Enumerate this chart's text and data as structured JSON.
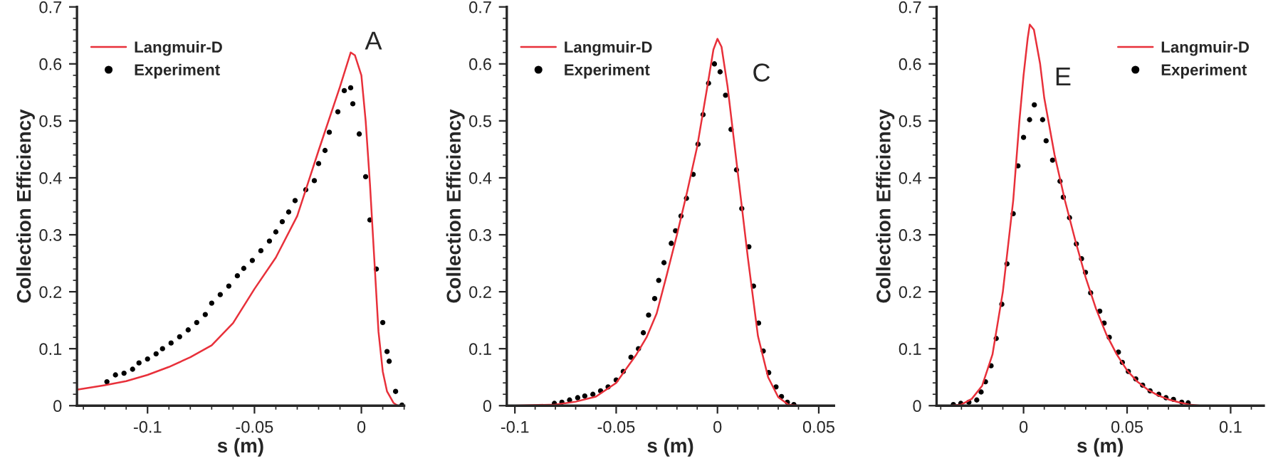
{
  "chart_data": [
    {
      "type": "line",
      "xlabel": "s (m)",
      "ylabel": "Collection Efficiency",
      "annotations": [
        "A"
      ],
      "xlim": [
        -0.133,
        0.02
      ],
      "ylim": [
        0,
        0.7
      ],
      "xticks": [
        -0.1,
        -0.05,
        0
      ],
      "yticks": [
        0,
        0.1,
        0.2,
        0.3,
        0.4,
        0.5,
        0.6,
        0.7
      ],
      "legend": "top left",
      "grid": false,
      "series": [
        {
          "name": "Langmuir-D",
          "color": "#e8303a",
          "marker": "none",
          "line_style": "solid",
          "x": [
            -0.133,
            -0.12,
            -0.11,
            -0.1,
            -0.09,
            -0.08,
            -0.07,
            -0.06,
            -0.05,
            -0.04,
            -0.03,
            -0.02,
            -0.01,
            -0.005,
            -0.003,
            0,
            0.002,
            0.004,
            0.006,
            0.008,
            0.01,
            0.012,
            0.015,
            0.017
          ],
          "values": [
            0.028,
            0.036,
            0.043,
            0.054,
            0.068,
            0.085,
            0.106,
            0.145,
            0.205,
            0.26,
            0.333,
            0.448,
            0.56,
            0.62,
            0.615,
            0.58,
            0.5,
            0.39,
            0.26,
            0.13,
            0.06,
            0.025,
            0.005,
            0
          ]
        },
        {
          "name": "Experiment",
          "type": "scatter",
          "color": "#000000",
          "marker": "circle",
          "x": [
            -0.119,
            -0.115,
            -0.111,
            -0.107,
            -0.104,
            -0.1,
            -0.096,
            -0.093,
            -0.089,
            -0.085,
            -0.081,
            -0.077,
            -0.073,
            -0.07,
            -0.066,
            -0.062,
            -0.058,
            -0.055,
            -0.051,
            -0.047,
            -0.043,
            -0.04,
            -0.037,
            -0.034,
            -0.031,
            -0.026,
            -0.022,
            -0.02,
            -0.017,
            -0.015,
            -0.011,
            -0.008,
            -0.005,
            -0.004,
            -0.001,
            0.002,
            0.004,
            0.007,
            0.01,
            0.012,
            0.013,
            0.016,
            0.019
          ],
          "values": [
            0.042,
            0.054,
            0.057,
            0.064,
            0.075,
            0.082,
            0.091,
            0.1,
            0.11,
            0.121,
            0.133,
            0.146,
            0.16,
            0.18,
            0.195,
            0.21,
            0.228,
            0.241,
            0.255,
            0.272,
            0.289,
            0.305,
            0.323,
            0.34,
            0.36,
            0.379,
            0.395,
            0.425,
            0.448,
            0.48,
            0.516,
            0.553,
            0.558,
            0.53,
            0.477,
            0.402,
            0.326,
            0.24,
            0.146,
            0.095,
            0.078,
            0.025,
            0.001
          ]
        }
      ]
    },
    {
      "type": "line",
      "xlabel": "s (m)",
      "ylabel": "Collection Efficiency",
      "annotations": [
        "C"
      ],
      "xlim": [
        -0.104,
        0.0575
      ],
      "ylim": [
        0,
        0.7
      ],
      "xticks": [
        -0.1,
        -0.05,
        0,
        0.05
      ],
      "yticks": [
        0,
        0.1,
        0.2,
        0.3,
        0.4,
        0.5,
        0.6,
        0.7
      ],
      "legend": "top left",
      "grid": false,
      "series": [
        {
          "name": "Langmuir-D",
          "color": "#e8303a",
          "marker": "none",
          "line_style": "solid",
          "x": [
            -0.1,
            -0.08,
            -0.07,
            -0.06,
            -0.05,
            -0.04,
            -0.035,
            -0.03,
            -0.025,
            -0.02,
            -0.015,
            -0.01,
            -0.005,
            -0.002,
            0,
            0.002,
            0.005,
            0.01,
            0.015,
            0.02,
            0.025,
            0.03,
            0.035,
            0.04
          ],
          "values": [
            0,
            0.002,
            0.007,
            0.016,
            0.04,
            0.09,
            0.12,
            0.162,
            0.23,
            0.3,
            0.375,
            0.455,
            0.56,
            0.625,
            0.644,
            0.63,
            0.56,
            0.41,
            0.26,
            0.122,
            0.05,
            0.015,
            0.002,
            0
          ]
        },
        {
          "name": "Experiment",
          "type": "scatter",
          "color": "#000000",
          "marker": "circle",
          "x": [
            -0.0805,
            -0.0768,
            -0.073,
            -0.069,
            -0.0655,
            -0.0615,
            -0.0577,
            -0.054,
            -0.05,
            -0.0465,
            -0.0427,
            -0.039,
            -0.0366,
            -0.034,
            -0.031,
            -0.029,
            -0.0264,
            -0.0228,
            -0.0207,
            -0.018,
            -0.0153,
            -0.012,
            -0.0096,
            -0.0071,
            -0.0044,
            -0.0015,
            0.0013,
            0.004,
            0.0067,
            0.0094,
            0.012,
            0.0155,
            0.0178,
            0.0203,
            0.0226,
            0.0253,
            0.0289,
            0.0316,
            0.0345,
            0.0377
          ],
          "values": [
            0.004,
            0.006,
            0.01,
            0.014,
            0.017,
            0.02,
            0.026,
            0.033,
            0.045,
            0.06,
            0.085,
            0.1,
            0.128,
            0.159,
            0.188,
            0.22,
            0.251,
            0.285,
            0.307,
            0.333,
            0.364,
            0.406,
            0.459,
            0.511,
            0.566,
            0.6,
            0.586,
            0.545,
            0.485,
            0.414,
            0.346,
            0.279,
            0.21,
            0.145,
            0.096,
            0.058,
            0.033,
            0.016,
            0.006,
            0.002
          ]
        }
      ]
    },
    {
      "type": "line",
      "xlabel": "s (m)",
      "ylabel": "Collection Efficiency",
      "annotations": [
        "E"
      ],
      "xlim": [
        -0.042,
        0.116
      ],
      "ylim": [
        0,
        0.7
      ],
      "xticks": [
        0,
        0.05,
        0.1
      ],
      "yticks": [
        0,
        0.1,
        0.2,
        0.3,
        0.4,
        0.5,
        0.6,
        0.7
      ],
      "legend": "top right",
      "grid": false,
      "series": [
        {
          "name": "Langmuir-D",
          "color": "#e8303a",
          "marker": "none",
          "line_style": "solid",
          "x": [
            -0.035,
            -0.03,
            -0.025,
            -0.02,
            -0.015,
            -0.01,
            -0.005,
            -0.002,
            0,
            0.002,
            0.003,
            0.005,
            0.008,
            0.01,
            0.015,
            0.02,
            0.025,
            0.03,
            0.035,
            0.04,
            0.045,
            0.05,
            0.055,
            0.06,
            0.065,
            0.07,
            0.075,
            0.08,
            0.085
          ],
          "values": [
            0,
            0.002,
            0.012,
            0.035,
            0.09,
            0.2,
            0.36,
            0.5,
            0.58,
            0.645,
            0.669,
            0.66,
            0.6,
            0.54,
            0.44,
            0.36,
            0.29,
            0.225,
            0.17,
            0.125,
            0.09,
            0.062,
            0.042,
            0.028,
            0.018,
            0.011,
            0.006,
            0.002,
            0
          ]
        },
        {
          "name": "Experiment",
          "type": "scatter",
          "color": "#000000",
          "marker": "circle",
          "x": [
            -0.0339,
            -0.0303,
            -0.0264,
            -0.0226,
            -0.0205,
            -0.0184,
            -0.0157,
            -0.0132,
            -0.0105,
            -0.008,
            -0.005,
            -0.0027,
            0,
            0.0029,
            0.0052,
            0.0092,
            0.0109,
            0.014,
            0.0176,
            0.0192,
            0.0222,
            0.0255,
            0.028,
            0.0299,
            0.0324,
            0.0368,
            0.0389,
            0.0414,
            0.0458,
            0.0477,
            0.0506,
            0.0542,
            0.0575,
            0.0611,
            0.0653,
            0.0688,
            0.0724,
            0.0764,
            0.0795
          ],
          "values": [
            0.002,
            0.004,
            0.006,
            0.01,
            0.024,
            0.042,
            0.07,
            0.118,
            0.178,
            0.249,
            0.337,
            0.421,
            0.471,
            0.502,
            0.528,
            0.502,
            0.465,
            0.431,
            0.394,
            0.366,
            0.33,
            0.284,
            0.258,
            0.234,
            0.198,
            0.166,
            0.145,
            0.12,
            0.094,
            0.076,
            0.06,
            0.047,
            0.036,
            0.026,
            0.02,
            0.014,
            0.011,
            0.006,
            0.005
          ]
        }
      ]
    }
  ]
}
